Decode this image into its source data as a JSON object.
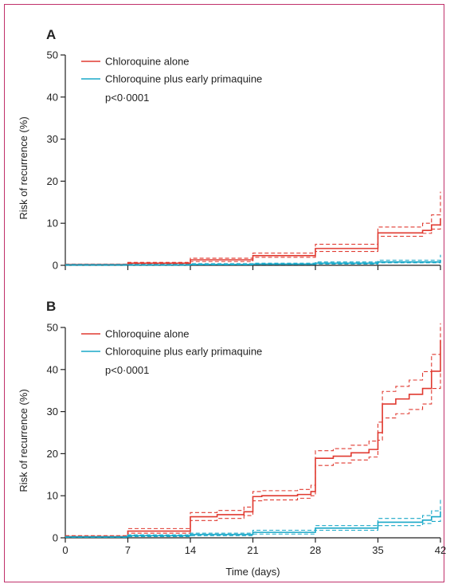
{
  "figure": {
    "colors": {
      "red": "#e03a30",
      "blue": "#1aa8c8",
      "axis": "#222222",
      "border": "#c0306a"
    }
  },
  "chart_data": [
    {
      "type": "line",
      "panel_label": "A",
      "xlabel": "",
      "ylabel": "Risk of recurrence (%)",
      "xlim": [
        0,
        42
      ],
      "ylim": [
        0,
        50
      ],
      "x_ticks": [
        0,
        7,
        14,
        21,
        28,
        35,
        42
      ],
      "x_tick_labels": [],
      "y_ticks": [
        0,
        10,
        20,
        30,
        40,
        50
      ],
      "y_tick_labels": [
        "0",
        "10",
        "20",
        "30",
        "40",
        "50"
      ],
      "annotation": "p<0·0001",
      "step": true,
      "series": [
        {
          "name": "Chloroquine alone",
          "color": "#e03a30",
          "points": [
            [
              0,
              0.2
            ],
            [
              7,
              0.5
            ],
            [
              14,
              1.3
            ],
            [
              21,
              2.3
            ],
            [
              28,
              4.0
            ],
            [
              35,
              7.7
            ],
            [
              40,
              8.3
            ],
            [
              41,
              9.6
            ],
            [
              42,
              11.2
            ]
          ],
          "lower": [
            [
              0,
              0.1
            ],
            [
              7,
              0.3
            ],
            [
              14,
              0.9
            ],
            [
              21,
              1.9
            ],
            [
              28,
              3.3
            ],
            [
              35,
              6.9
            ],
            [
              40,
              7.6
            ],
            [
              41,
              8.6
            ],
            [
              42,
              9.5
            ]
          ],
          "upper": [
            [
              0,
              0.3
            ],
            [
              7,
              0.7
            ],
            [
              14,
              1.7
            ],
            [
              21,
              2.9
            ],
            [
              28,
              5.0
            ],
            [
              35,
              9.1
            ],
            [
              40,
              10.0
            ],
            [
              41,
              12.0
            ],
            [
              42,
              17.5
            ]
          ]
        },
        {
          "name": "Chloroquine plus early primaquine",
          "color": "#1aa8c8",
          "points": [
            [
              0,
              0.1
            ],
            [
              14,
              0.2
            ],
            [
              21,
              0.3
            ],
            [
              28,
              0.5
            ],
            [
              35,
              0.8
            ],
            [
              42,
              1.2
            ]
          ],
          "lower": [
            [
              0,
              0.0
            ],
            [
              14,
              0.1
            ],
            [
              21,
              0.2
            ],
            [
              28,
              0.3
            ],
            [
              35,
              0.6
            ],
            [
              42,
              0.9
            ]
          ],
          "upper": [
            [
              0,
              0.2
            ],
            [
              14,
              0.4
            ],
            [
              21,
              0.5
            ],
            [
              28,
              0.8
            ],
            [
              35,
              1.2
            ],
            [
              42,
              2.5
            ]
          ]
        }
      ]
    },
    {
      "type": "line",
      "panel_label": "B",
      "xlabel": "Time (days)",
      "ylabel": "Risk of recurrence (%)",
      "xlim": [
        0,
        42
      ],
      "ylim": [
        0,
        50
      ],
      "x_ticks": [
        0,
        7,
        14,
        21,
        28,
        35,
        42
      ],
      "x_tick_labels": [
        "0",
        "7",
        "14",
        "21",
        "28",
        "35",
        "42"
      ],
      "y_ticks": [
        0,
        10,
        20,
        30,
        40,
        50
      ],
      "y_tick_labels": [
        "0",
        "10",
        "20",
        "30",
        "40",
        "50"
      ],
      "annotation": "p<0·0001",
      "step": true,
      "series": [
        {
          "name": "Chloroquine alone",
          "color": "#e03a30",
          "points": [
            [
              0,
              0.3
            ],
            [
              7,
              1.6
            ],
            [
              14,
              5.0
            ],
            [
              17,
              5.5
            ],
            [
              20,
              6.2
            ],
            [
              21,
              9.8
            ],
            [
              22,
              10.0
            ],
            [
              26,
              10.3
            ],
            [
              27.5,
              11.0
            ],
            [
              28,
              18.9
            ],
            [
              30,
              19.4
            ],
            [
              32,
              20.2
            ],
            [
              34,
              21.0
            ],
            [
              35,
              25.0
            ],
            [
              35.5,
              31.8
            ],
            [
              37,
              33.0
            ],
            [
              38.5,
              34.1
            ],
            [
              40,
              35.5
            ],
            [
              41,
              39.6
            ],
            [
              42,
              47.0
            ]
          ],
          "lower": [
            [
              0,
              0.1
            ],
            [
              7,
              1.1
            ],
            [
              14,
              4.1
            ],
            [
              17,
              4.6
            ],
            [
              20,
              5.3
            ],
            [
              21,
              8.8
            ],
            [
              22,
              9.0
            ],
            [
              26,
              9.4
            ],
            [
              27.5,
              10.0
            ],
            [
              28,
              17.2
            ],
            [
              30,
              17.8
            ],
            [
              32,
              18.5
            ],
            [
              34,
              19.2
            ],
            [
              35,
              23.2
            ],
            [
              35.5,
              28.5
            ],
            [
              37,
              29.5
            ],
            [
              38.5,
              30.5
            ],
            [
              40,
              31.8
            ],
            [
              41,
              35.5
            ],
            [
              42,
              40.0
            ]
          ],
          "upper": [
            [
              0,
              0.5
            ],
            [
              7,
              2.2
            ],
            [
              14,
              6.0
            ],
            [
              17,
              6.5
            ],
            [
              20,
              7.3
            ],
            [
              21,
              11.0
            ],
            [
              22,
              11.2
            ],
            [
              26,
              11.5
            ],
            [
              27.5,
              12.5
            ],
            [
              28,
              20.7
            ],
            [
              30,
              21.2
            ],
            [
              32,
              22.0
            ],
            [
              34,
              23.0
            ],
            [
              35,
              27.5
            ],
            [
              35.5,
              34.8
            ],
            [
              37,
              36.0
            ],
            [
              38.5,
              37.5
            ],
            [
              40,
              39.5
            ],
            [
              41,
              43.6
            ],
            [
              42,
              51.0
            ]
          ]
        },
        {
          "name": "Chloroquine plus early primaquine",
          "color": "#1aa8c8",
          "points": [
            [
              0,
              0.2
            ],
            [
              7,
              0.5
            ],
            [
              14,
              0.8
            ],
            [
              21,
              1.3
            ],
            [
              28,
              2.3
            ],
            [
              35,
              3.7
            ],
            [
              40,
              4.2
            ],
            [
              41,
              5.0
            ],
            [
              42,
              6.3
            ]
          ],
          "lower": [
            [
              0,
              0.1
            ],
            [
              7,
              0.3
            ],
            [
              14,
              0.5
            ],
            [
              21,
              0.9
            ],
            [
              28,
              1.8
            ],
            [
              35,
              2.9
            ],
            [
              40,
              3.4
            ],
            [
              41,
              3.9
            ],
            [
              42,
              4.5
            ]
          ],
          "upper": [
            [
              0,
              0.3
            ],
            [
              7,
              0.7
            ],
            [
              14,
              1.1
            ],
            [
              21,
              1.8
            ],
            [
              28,
              2.9
            ],
            [
              35,
              4.6
            ],
            [
              40,
              5.3
            ],
            [
              41,
              6.4
            ],
            [
              42,
              9.5
            ]
          ]
        }
      ]
    }
  ]
}
